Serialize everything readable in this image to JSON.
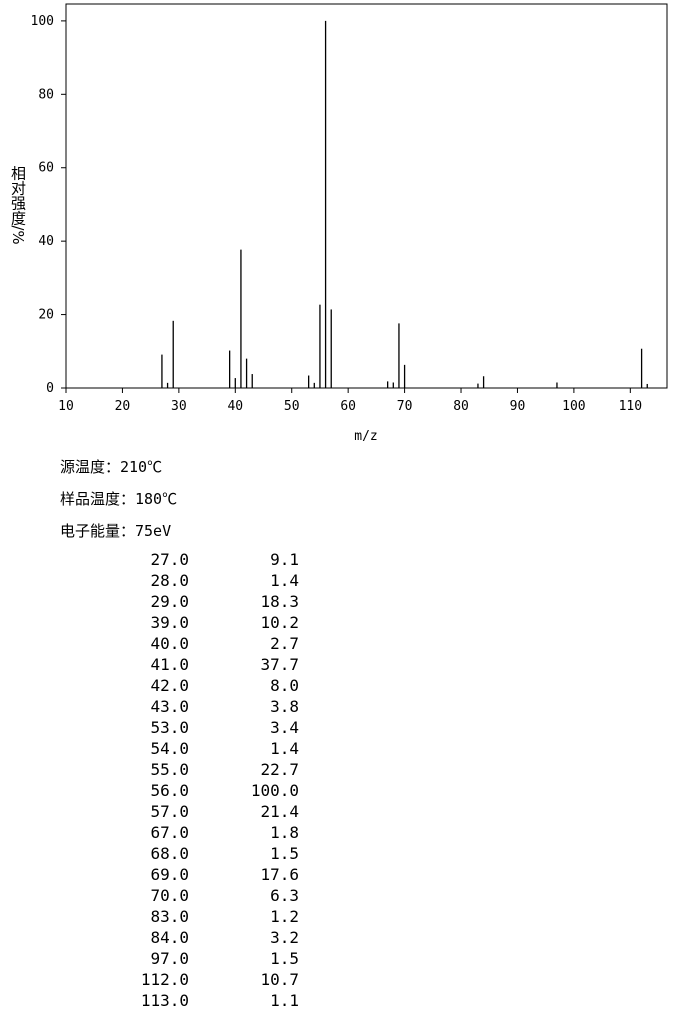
{
  "chart_data": {
    "type": "stem",
    "y_label": "相对强度/%",
    "x_label": "m/z",
    "x": [
      27,
      28,
      29,
      39,
      40,
      41,
      42,
      43,
      53,
      54,
      55,
      56,
      57,
      67,
      68,
      69,
      70,
      83,
      84,
      97,
      112,
      113
    ],
    "values": [
      9.1,
      1.4,
      18.3,
      10.2,
      2.7,
      37.7,
      8.0,
      3.8,
      3.4,
      1.4,
      22.7,
      100.0,
      21.4,
      1.8,
      1.5,
      17.6,
      6.3,
      1.2,
      3.2,
      1.5,
      10.7,
      1.1
    ],
    "color": "#000000",
    "xlim": [
      10,
      116.5
    ],
    "xticks": [
      10,
      20,
      30,
      40,
      50,
      60,
      70,
      80,
      90,
      100,
      110
    ],
    "ylim": [
      0,
      104.6
    ],
    "yticks": [
      0,
      20,
      40,
      60,
      80,
      100
    ]
  },
  "info": [
    "源温度：210℃",
    "样品温度：180℃",
    "电子能量：75eV"
  ],
  "table": {
    "rows": [
      [
        "27.0",
        "9.1"
      ],
      [
        "28.0",
        "1.4"
      ],
      [
        "29.0",
        "18.3"
      ],
      [
        "39.0",
        "10.2"
      ],
      [
        "40.0",
        "2.7"
      ],
      [
        "41.0",
        "37.7"
      ],
      [
        "42.0",
        "8.0"
      ],
      [
        "43.0",
        "3.8"
      ],
      [
        "53.0",
        "3.4"
      ],
      [
        "54.0",
        "1.4"
      ],
      [
        "55.0",
        "22.7"
      ],
      [
        "56.0",
        "100.0"
      ],
      [
        "57.0",
        "21.4"
      ],
      [
        "67.0",
        "1.8"
      ],
      [
        "68.0",
        "1.5"
      ],
      [
        "69.0",
        "17.6"
      ],
      [
        "70.0",
        "6.3"
      ],
      [
        "83.0",
        "1.2"
      ],
      [
        "84.0",
        "3.2"
      ],
      [
        "97.0",
        "1.5"
      ],
      [
        "112.0",
        "10.7"
      ],
      [
        "113.0",
        "1.1"
      ]
    ]
  }
}
